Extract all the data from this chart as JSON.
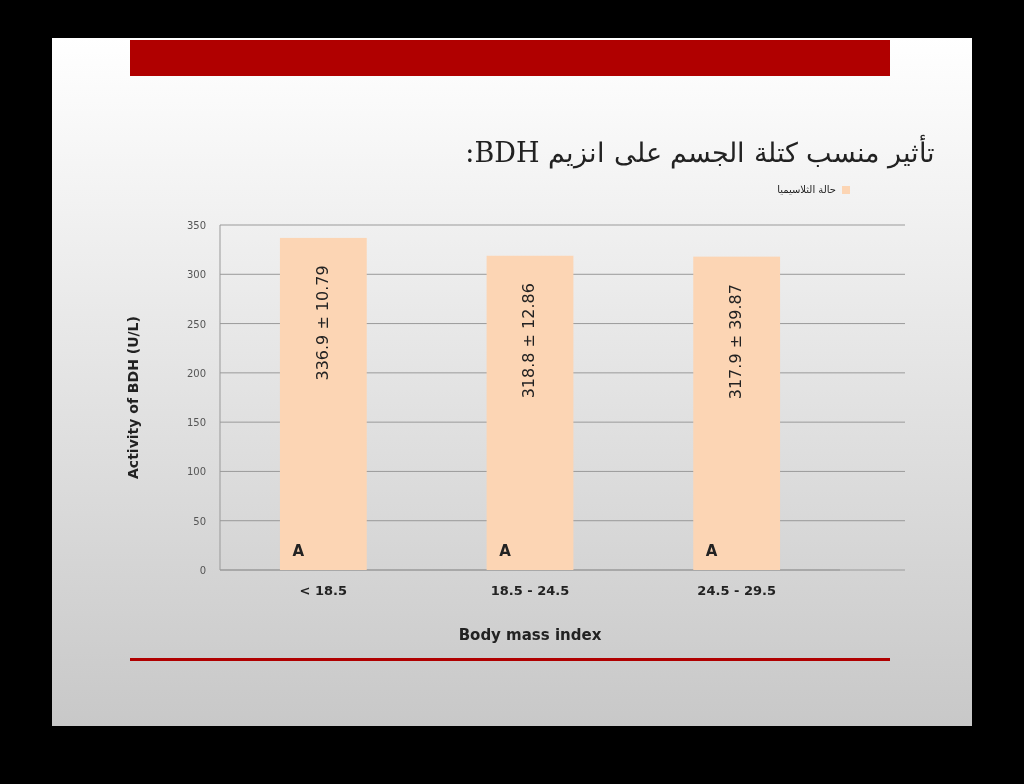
{
  "chart_data": {
    "type": "bar",
    "title": "تأثير منسب كتلة الجسم  على انزيم BDH:",
    "xlabel": "Body mass index",
    "ylabel": "Activity of BDH (U/L)",
    "categories": [
      "< 18.5",
      "18.5 - 24.5",
      "24.5 - 29.5"
    ],
    "series": [
      {
        "name": "حالة الثلاسيميا",
        "color": "#fcd5b4",
        "values": [
          336.9,
          318.8,
          317.9
        ],
        "value_labels": [
          "336.9 ± 10.79",
          "318.8 ± 12.86",
          "317.9 ± 39.87"
        ]
      }
    ],
    "annotations": [
      {
        "text": "A",
        "x": "< 18.5",
        "y": 0
      },
      {
        "text": "A",
        "x": "18.5 - 24.5",
        "y": 0
      },
      {
        "text": "A",
        "x": "24.5 - 29.5",
        "y": 0
      }
    ],
    "ylim": [
      0,
      350
    ],
    "yticks": [
      0,
      50,
      100,
      150,
      200,
      250,
      300,
      350
    ],
    "grid": "y",
    "legend": "top right"
  }
}
